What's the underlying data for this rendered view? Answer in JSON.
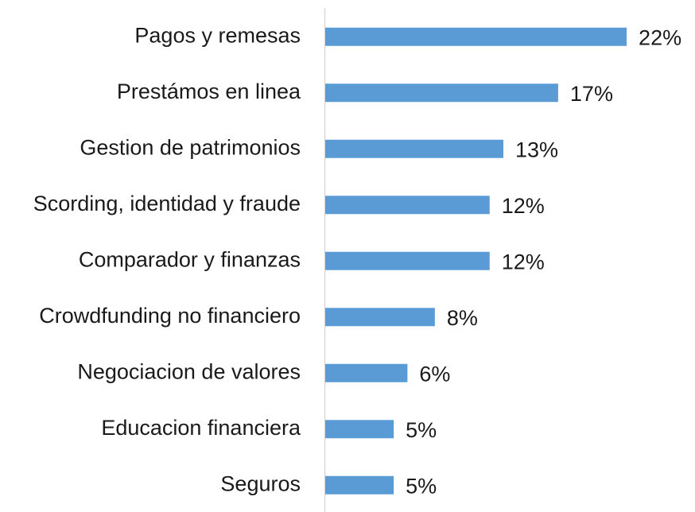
{
  "chart_data": {
    "type": "barh",
    "categories": [
      "Pagos y remesas",
      "Prestámos en linea",
      "Gestion de patrimonios",
      "Scording, identidad y fraude",
      "Comparador y finanzas",
      "Crowdfunding no financiero",
      "Negociacion de valores",
      "Educacion financiera",
      "Seguros"
    ],
    "values": [
      22,
      17,
      13,
      12,
      12,
      8,
      6,
      5,
      5
    ],
    "value_labels": [
      "22%",
      "17%",
      "13%",
      "12%",
      "12%",
      "8%",
      "6%",
      "5%",
      "5%"
    ],
    "color": "#5b9bd5"
  }
}
